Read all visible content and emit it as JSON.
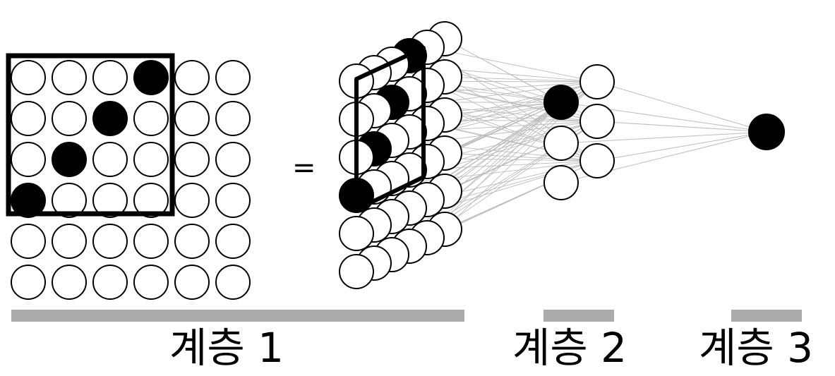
{
  "equals_sign": "=",
  "layers": [
    {
      "label": "계층 1"
    },
    {
      "label": "계층 2"
    },
    {
      "label": "계층 3"
    }
  ],
  "grid": {
    "rows": 6,
    "cols": 6,
    "filled_cells": [
      [
        0,
        3
      ],
      [
        1,
        2
      ],
      [
        2,
        1
      ],
      [
        3,
        0
      ]
    ],
    "window_rows": 4,
    "window_cols": 4
  },
  "layer2": {
    "nodes": 4,
    "filled_index": 0
  },
  "layer3": {
    "nodes": 1,
    "filled_index": 0
  },
  "colors": {
    "node_fill": "#ffffff",
    "active_fill": "#000000",
    "stroke": "#000000",
    "edge": "#bdbdbd",
    "bar": "#aaaaaa"
  }
}
